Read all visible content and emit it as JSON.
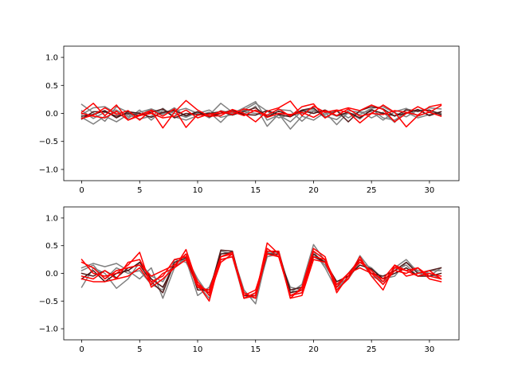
{
  "chart_data": [
    {
      "type": "line",
      "title": "",
      "xlabel": "",
      "ylabel": "",
      "xlim": [
        -1.55,
        32.55
      ],
      "ylim": [
        -1.2,
        1.2
      ],
      "grid": false,
      "xticks": [
        0,
        5,
        10,
        15,
        20,
        25,
        30
      ],
      "xtick_labels": [
        "0",
        "5",
        "10",
        "15",
        "20",
        "25",
        "30"
      ],
      "yticks": [
        -1.0,
        -0.5,
        0.0,
        0.5,
        1.0
      ],
      "ytick_labels": [
        "−1.0",
        "−0.5",
        "0.0",
        "0.5",
        "1.0"
      ],
      "x": [
        0,
        1,
        2,
        3,
        4,
        5,
        6,
        7,
        8,
        9,
        10,
        11,
        12,
        13,
        14,
        15,
        16,
        17,
        18,
        19,
        20,
        21,
        22,
        23,
        24,
        25,
        26,
        27,
        28,
        29,
        30,
        31
      ],
      "series": [
        {
          "color": "#808080",
          "values": [
            0.16,
            0.01,
            -0.14,
            0.12,
            0.02,
            -0.03,
            0.07,
            -0.02,
            0.1,
            -0.06,
            0.03,
            -0.08,
            0.05,
            0.0,
            0.1,
            0.21,
            -0.12,
            -0.03,
            -0.15,
            0.04,
            0.08,
            -0.05,
            -0.11,
            0.05,
            0.02,
            0.03,
            -0.12,
            0.03,
            0.09,
            -0.05,
            0.03,
            -0.04
          ]
        },
        {
          "color": "#808080",
          "values": [
            -0.07,
            -0.19,
            -0.05,
            -0.15,
            -0.02,
            -0.1,
            -0.05,
            0.09,
            -0.06,
            -0.12,
            -0.04,
            0.02,
            -0.16,
            0.05,
            -0.02,
            0.13,
            -0.23,
            -0.01,
            -0.28,
            -0.05,
            -0.12,
            0.02,
            -0.2,
            0.02,
            -0.1,
            0.08,
            -0.08,
            -0.12,
            0.02,
            -0.08,
            -0.02,
            0.03
          ]
        },
        {
          "color": "#808080",
          "values": [
            -0.02,
            0.1,
            0.12,
            0.0,
            -0.09,
            0.06,
            -0.12,
            0.06,
            0.0,
            -0.07,
            0.02,
            -0.03,
            0.18,
            0.02,
            0.06,
            0.18,
            0.04,
            -0.08,
            -0.02,
            0.0,
            0.05,
            0.03,
            -0.05,
            0.0,
            -0.02,
            0.09,
            0.12,
            0.01,
            -0.06,
            0.06,
            0.05,
            0.0
          ]
        },
        {
          "color": "#808080",
          "values": [
            0.05,
            -0.09,
            0.02,
            0.06,
            -0.06,
            0.02,
            0.08,
            0.0,
            0.04,
            0.09,
            0.0,
            0.06,
            -0.07,
            -0.02,
            0.03,
            0.0,
            -0.03,
            0.07,
            0.05,
            -0.14,
            0.04,
            -0.02,
            0.05,
            -0.08,
            0.04,
            -0.08,
            0.02,
            -0.16,
            0.08,
            0.03,
            0.1,
            0.08
          ]
        },
        {
          "color": "#552020",
          "values": [
            -0.1,
            0.03,
            0.03,
            -0.05,
            0.0,
            -0.04,
            0.02,
            0.08,
            -0.08,
            0.0,
            -0.02,
            0.0,
            0.03,
            -0.03,
            0.04,
            0.1,
            -0.06,
            0.04,
            -0.04,
            0.06,
            0.1,
            -0.08,
            0.05,
            -0.15,
            0.05,
            0.12,
            0.08,
            -0.05,
            0.06,
            0.04,
            0.06,
            -0.02
          ]
        },
        {
          "color": "#4a1414",
          "values": [
            -0.05,
            -0.02,
            0.05,
            -0.08,
            0.03,
            0.0,
            -0.07,
            0.02,
            0.05,
            -0.04,
            0.03,
            -0.06,
            0.0,
            0.06,
            -0.02,
            -0.03,
            0.05,
            -0.02,
            -0.06,
            0.05,
            0.0,
            0.06,
            -0.04,
            0.02,
            -0.08,
            0.06,
            0.0,
            -0.04,
            0.0,
            0.07,
            -0.04,
            0.03
          ]
        },
        {
          "color": "#ff0000",
          "values": [
            0.02,
            0.18,
            -0.04,
            0.15,
            -0.12,
            -0.02,
            0.05,
            -0.26,
            0.02,
            0.23,
            0.06,
            -0.05,
            -0.04,
            0.07,
            0.0,
            -0.15,
            0.04,
            0.1,
            0.22,
            -0.04,
            0.13,
            0.02,
            0.06,
            0.02,
            -0.17,
            0.0,
            0.15,
            0.02,
            -0.24,
            -0.04,
            0.02,
            -0.05
          ]
        },
        {
          "color": "#ff0000",
          "values": [
            -0.09,
            -0.03,
            0.1,
            -0.02,
            0.05,
            -0.12,
            0.06,
            -0.05,
            0.08,
            -0.25,
            -0.02,
            -0.05,
            0.04,
            -0.02,
            0.08,
            0.04,
            -0.03,
            0.08,
            -0.05,
            0.12,
            0.17,
            -0.08,
            0.04,
            0.1,
            0.05,
            0.15,
            0.07,
            -0.15,
            0.0,
            0.12,
            0.02,
            0.14
          ]
        },
        {
          "color": "#ff0000",
          "values": [
            0.0,
            -0.05,
            -0.08,
            0.04,
            -0.12,
            -0.04,
            0.0,
            -0.08,
            -0.05,
            0.06,
            -0.08,
            -0.01,
            0.0,
            0.03,
            -0.04,
            0.06,
            -0.07,
            0.0,
            -0.02,
            0.02,
            -0.07,
            0.05,
            -0.04,
            0.08,
            -0.05,
            0.0,
            -0.02,
            0.05,
            0.02,
            -0.03,
            0.12,
            0.16
          ]
        }
      ]
    },
    {
      "type": "line",
      "title": "",
      "xlabel": "",
      "ylabel": "",
      "xlim": [
        -1.55,
        32.55
      ],
      "ylim": [
        -1.2,
        1.2
      ],
      "grid": false,
      "xticks": [
        0,
        5,
        10,
        15,
        20,
        25,
        30
      ],
      "xtick_labels": [
        "0",
        "5",
        "10",
        "15",
        "20",
        "25",
        "30"
      ],
      "yticks": [
        -1.0,
        -0.5,
        0.0,
        0.5,
        1.0
      ],
      "ytick_labels": [
        "−1.0",
        "−0.5",
        "0.0",
        "0.5",
        "1.0"
      ],
      "x": [
        0,
        1,
        2,
        3,
        4,
        5,
        6,
        7,
        8,
        9,
        10,
        11,
        12,
        13,
        14,
        15,
        16,
        17,
        18,
        19,
        20,
        21,
        22,
        23,
        24,
        25,
        26,
        27,
        28,
        29,
        30,
        31
      ],
      "series": [
        {
          "color": "#808080",
          "values": [
            0.1,
            0.18,
            0.12,
            0.18,
            0.05,
            -0.1,
            0.1,
            -0.45,
            0.1,
            0.3,
            -0.1,
            -0.4,
            0.4,
            0.35,
            -0.3,
            -0.55,
            0.35,
            0.4,
            -0.35,
            -0.2,
            0.52,
            0.22,
            -0.25,
            -0.1,
            0.32,
            0.05,
            -0.2,
            0.1,
            0.25,
            0.02,
            -0.05,
            0.1
          ]
        },
        {
          "color": "#808080",
          "values": [
            -0.25,
            0.1,
            0.0,
            -0.27,
            -0.1,
            0.2,
            -0.05,
            -0.15,
            0.2,
            0.25,
            -0.4,
            -0.25,
            0.25,
            0.3,
            -0.45,
            -0.35,
            0.38,
            0.3,
            -0.25,
            -0.3,
            0.4,
            0.1,
            -0.3,
            -0.05,
            0.25,
            -0.05,
            -0.15,
            0.05,
            0.15,
            -0.05,
            0.05,
            0.05
          ]
        },
        {
          "color": "#808080",
          "values": [
            0.05,
            0.15,
            -0.1,
            0.1,
            0.0,
            0.05,
            -0.2,
            -0.3,
            0.25,
            0.2,
            -0.2,
            -0.45,
            0.3,
            0.4,
            -0.4,
            -0.45,
            0.3,
            0.35,
            -0.4,
            -0.35,
            0.35,
            0.15,
            -0.2,
            -0.1,
            0.2,
            0.1,
            -0.1,
            -0.05,
            0.2,
            0.05,
            0.0,
            -0.1
          ]
        },
        {
          "color": "#552020",
          "values": [
            0.0,
            -0.05,
            0.05,
            -0.08,
            0.1,
            0.15,
            -0.15,
            -0.35,
            0.2,
            0.28,
            -0.25,
            -0.35,
            0.42,
            0.4,
            -0.4,
            -0.4,
            0.35,
            0.35,
            -0.3,
            -0.25,
            0.35,
            0.2,
            -0.25,
            0.0,
            0.25,
            0.0,
            -0.05,
            0.05,
            0.2,
            0.0,
            0.05,
            0.1
          ]
        },
        {
          "color": "#4a1414",
          "values": [
            -0.1,
            0.05,
            -0.15,
            0.0,
            0.05,
            0.2,
            -0.1,
            -0.25,
            0.15,
            0.35,
            -0.3,
            -0.3,
            0.35,
            0.38,
            -0.45,
            -0.4,
            0.4,
            0.38,
            -0.35,
            -0.3,
            0.3,
            0.2,
            -0.15,
            -0.05,
            0.15,
            0.08,
            -0.1,
            0.0,
            0.1,
            -0.05,
            -0.05,
            0.0
          ]
        },
        {
          "color": "#ff0000",
          "values": [
            0.25,
            0.0,
            -0.05,
            0.0,
            0.15,
            0.38,
            -0.25,
            -0.1,
            0.1,
            0.43,
            -0.2,
            -0.5,
            0.3,
            0.38,
            -0.45,
            -0.4,
            0.55,
            0.35,
            -0.45,
            -0.25,
            0.45,
            0.3,
            -0.35,
            -0.05,
            0.3,
            -0.05,
            -0.3,
            0.15,
            0.05,
            0.1,
            -0.1,
            -0.15
          ]
        },
        {
          "color": "#ff0000",
          "values": [
            -0.05,
            -0.1,
            0.05,
            -0.1,
            0.2,
            0.25,
            -0.15,
            -0.05,
            0.25,
            0.3,
            -0.15,
            -0.4,
            0.2,
            0.35,
            -0.45,
            -0.35,
            0.45,
            0.3,
            -0.4,
            -0.3,
            0.4,
            0.25,
            -0.3,
            -0.1,
            0.25,
            0.0,
            -0.2,
            0.05,
            0.0,
            0.1,
            -0.05,
            -0.1
          ]
        },
        {
          "color": "#ff0000",
          "values": [
            0.2,
            0.1,
            -0.1,
            0.05,
            0.1,
            0.15,
            -0.05,
            0.05,
            0.15,
            0.35,
            -0.2,
            -0.35,
            0.25,
            0.3,
            -0.4,
            -0.3,
            0.35,
            0.3,
            -0.4,
            -0.35,
            0.3,
            0.25,
            -0.2,
            0.0,
            0.2,
            0.05,
            -0.15,
            0.1,
            0.05,
            -0.05,
            0.0,
            -0.05
          ]
        },
        {
          "color": "#ff0000",
          "values": [
            -0.1,
            -0.15,
            -0.15,
            -0.1,
            -0.05,
            0.1,
            -0.2,
            0.0,
            0.1,
            0.25,
            -0.25,
            -0.3,
            0.3,
            0.35,
            -0.35,
            -0.45,
            0.4,
            0.4,
            -0.45,
            -0.4,
            0.25,
            0.2,
            -0.25,
            0.0,
            0.1,
            0.0,
            -0.1,
            0.15,
            -0.05,
            0.0,
            0.05,
            -0.1
          ]
        }
      ]
    }
  ]
}
